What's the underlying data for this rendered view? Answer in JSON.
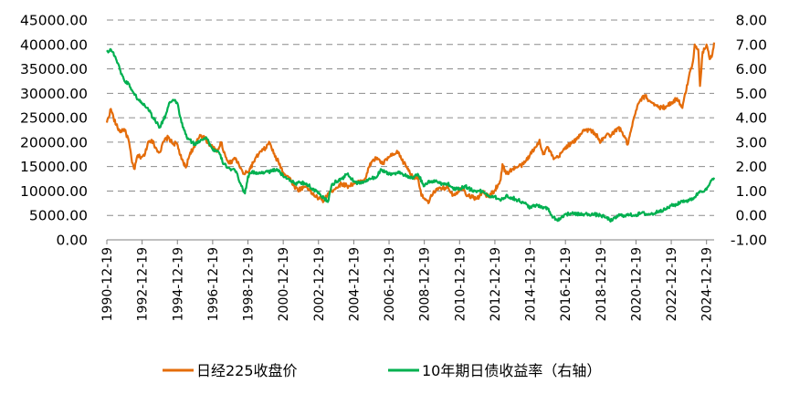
{
  "chart_data": {
    "type": "line",
    "title": "",
    "xlabel": "",
    "y_left_ticks": [
      "45000.00",
      "40000.00",
      "35000.00",
      "30000.00",
      "25000.00",
      "20000.00",
      "15000.00",
      "10000.00",
      "5000.00",
      "0.00"
    ],
    "y_right_ticks": [
      "8.00",
      "7.00",
      "6.00",
      "5.00",
      "4.00",
      "3.00",
      "2.00",
      "1.00",
      "0.00",
      "-1.00"
    ],
    "ylim_left": [
      0,
      45000
    ],
    "ylim_right": [
      -1,
      8
    ],
    "xlim": [
      1990.97,
      2025.4
    ],
    "grid": "horizontal dashed",
    "legend_position": "bottom",
    "x_tick_labels": [
      "1990-12-19",
      "1992-12-19",
      "1994-12-19",
      "1996-12-19",
      "1998-12-19",
      "2000-12-19",
      "2002-12-19",
      "2004-12-19",
      "2006-12-19",
      "2008-12-19",
      "2010-12-19",
      "2012-12-19",
      "2014-12-19",
      "2016-12-19",
      "2018-12-19",
      "2020-12-19",
      "2022-12-19",
      "2024-12-19"
    ],
    "series": [
      {
        "name": "日经225收盘价",
        "axis": "left",
        "color": "#E46C0A",
        "x": [
          1990.97,
          1991.2,
          1991.35,
          1991.5,
          1991.7,
          1991.95,
          1992.2,
          1992.4,
          1992.55,
          1992.7,
          1992.85,
          1993.1,
          1993.3,
          1993.5,
          1993.8,
          1994.0,
          1994.2,
          1994.45,
          1994.7,
          1994.95,
          1995.2,
          1995.45,
          1995.7,
          1995.95,
          1996.25,
          1996.5,
          1996.75,
          1996.97,
          1997.2,
          1997.45,
          1997.7,
          1997.97,
          1998.2,
          1998.45,
          1998.7,
          1998.97,
          1999.3,
          1999.6,
          1999.97,
          2000.2,
          2000.5,
          2000.7,
          2000.97,
          2001.3,
          2001.6,
          2001.8,
          2001.97,
          2002.3,
          2002.6,
          2002.97,
          2003.3,
          2003.5,
          2003.97,
          2004.3,
          2004.6,
          2004.97,
          2005.3,
          2005.6,
          2005.97,
          2006.3,
          2006.6,
          2006.97,
          2007.3,
          2007.5,
          2007.7,
          2007.97,
          2008.3,
          2008.6,
          2008.8,
          2008.97,
          2009.2,
          2009.5,
          2009.97,
          2010.3,
          2010.6,
          2010.97,
          2011.2,
          2011.3,
          2011.7,
          2011.97,
          2012.3,
          2012.6,
          2012.97,
          2013.3,
          2013.4,
          2013.6,
          2013.97,
          2014.3,
          2014.6,
          2014.97,
          2015.3,
          2015.5,
          2015.7,
          2015.97,
          2016.3,
          2016.6,
          2016.97,
          2017.3,
          2017.6,
          2017.97,
          2018.3,
          2018.6,
          2018.8,
          2018.97,
          2019.3,
          2019.6,
          2019.97,
          2020.2,
          2020.5,
          2020.97,
          2021.2,
          2021.5,
          2021.7,
          2021.97,
          2022.3,
          2022.6,
          2022.97,
          2023.3,
          2023.6,
          2023.97,
          2024.2,
          2024.3,
          2024.5,
          2024.6,
          2024.75,
          2024.97,
          2025.15,
          2025.3,
          2025.4
        ],
        "values": [
          24000,
          26800,
          25000,
          23500,
          22200,
          22700,
          20500,
          15800,
          14500,
          17200,
          17000,
          17200,
          20000,
          20500,
          18500,
          18000,
          20200,
          21000,
          19700,
          19700,
          16500,
          14800,
          17900,
          19000,
          21500,
          21000,
          19700,
          18900,
          18000,
          20000,
          17000,
          15600,
          16800,
          15500,
          13500,
          13800,
          16000,
          17700,
          18800,
          20000,
          17000,
          16000,
          13800,
          12800,
          11000,
          10200,
          10500,
          11000,
          9500,
          8500,
          8000,
          9500,
          10700,
          11500,
          11000,
          11500,
          11800,
          12500,
          16000,
          16800,
          15500,
          17000,
          17500,
          18000,
          16300,
          15000,
          12800,
          13000,
          9000,
          8500,
          7500,
          10000,
          10500,
          10800,
          9200,
          10200,
          10800,
          9500,
          8700,
          8500,
          9800,
          8800,
          10200,
          12300,
          15500,
          13500,
          14500,
          15000,
          15500,
          17500,
          19000,
          20500,
          17500,
          19000,
          16500,
          17000,
          19000,
          19700,
          20500,
          22500,
          22500,
          22000,
          21000,
          20000,
          21500,
          21500,
          23000,
          22000,
          19500,
          26500,
          28500,
          29500,
          28500,
          28000,
          27000,
          27200,
          28000,
          29000,
          27000,
          33400,
          36500,
          40000,
          39000,
          31500,
          38500,
          40000,
          37000,
          38000,
          40400
        ]
      },
      {
        "name": "10年期日债收益率（右轴）",
        "axis": "right",
        "color": "#00B050",
        "x": [
          1990.97,
          1991.2,
          1991.45,
          1991.7,
          1991.97,
          1992.2,
          1992.5,
          1992.8,
          1992.97,
          1993.3,
          1993.6,
          1993.8,
          1993.97,
          1994.3,
          1994.5,
          1994.8,
          1994.97,
          1995.2,
          1995.5,
          1995.8,
          1995.97,
          1996.3,
          1996.6,
          1996.97,
          1997.3,
          1997.6,
          1997.97,
          1998.3,
          1998.6,
          1998.8,
          1998.97,
          1999.2,
          1999.5,
          1999.97,
          2000.3,
          2000.6,
          2000.97,
          2001.3,
          2001.6,
          2001.97,
          2002.3,
          2002.6,
          2002.97,
          2003.3,
          2003.5,
          2003.7,
          2003.97,
          2004.3,
          2004.6,
          2004.97,
          2005.3,
          2005.6,
          2005.97,
          2006.3,
          2006.5,
          2006.97,
          2007.3,
          2007.5,
          2007.97,
          2008.3,
          2008.6,
          2008.97,
          2009.3,
          2009.6,
          2009.97,
          2010.3,
          2010.6,
          2010.97,
          2011.3,
          2011.6,
          2011.97,
          2012.3,
          2012.6,
          2012.97,
          2013.3,
          2013.6,
          2013.97,
          2014.3,
          2014.6,
          2014.97,
          2015.3,
          2015.6,
          2015.97,
          2016.2,
          2016.5,
          2016.97,
          2017.3,
          2017.6,
          2017.97,
          2018.3,
          2018.6,
          2018.97,
          2019.3,
          2019.6,
          2019.97,
          2020.3,
          2020.6,
          2020.97,
          2021.3,
          2021.6,
          2021.97,
          2022.3,
          2022.6,
          2022.97,
          2023.3,
          2023.6,
          2023.97,
          2024.3,
          2024.6,
          2024.97,
          2025.15,
          2025.4
        ],
        "values": [
          6.7,
          6.8,
          6.5,
          6.0,
          5.5,
          5.4,
          5.0,
          4.7,
          4.6,
          4.4,
          4.0,
          3.8,
          3.6,
          4.1,
          4.6,
          4.7,
          4.6,
          3.8,
          3.2,
          3.0,
          2.9,
          3.1,
          3.2,
          2.7,
          2.6,
          2.1,
          1.9,
          1.8,
          1.2,
          0.9,
          1.6,
          1.8,
          1.7,
          1.8,
          1.8,
          1.9,
          1.6,
          1.5,
          1.3,
          1.35,
          1.3,
          1.1,
          0.9,
          0.7,
          0.55,
          1.2,
          1.4,
          1.5,
          1.7,
          1.4,
          1.3,
          1.4,
          1.5,
          1.6,
          1.9,
          1.7,
          1.7,
          1.8,
          1.6,
          1.5,
          1.7,
          1.2,
          1.4,
          1.4,
          1.3,
          1.3,
          1.1,
          1.1,
          1.2,
          1.05,
          1.0,
          0.98,
          0.8,
          0.78,
          0.6,
          0.8,
          0.72,
          0.62,
          0.52,
          0.33,
          0.4,
          0.38,
          0.27,
          0.0,
          -0.2,
          0.05,
          0.07,
          0.05,
          0.05,
          0.05,
          0.04,
          0.0,
          -0.1,
          -0.22,
          0.0,
          0.0,
          0.02,
          0.02,
          0.1,
          0.05,
          0.07,
          0.2,
          0.23,
          0.4,
          0.45,
          0.6,
          0.6,
          0.75,
          1.0,
          1.05,
          1.3,
          1.55
        ]
      }
    ]
  }
}
